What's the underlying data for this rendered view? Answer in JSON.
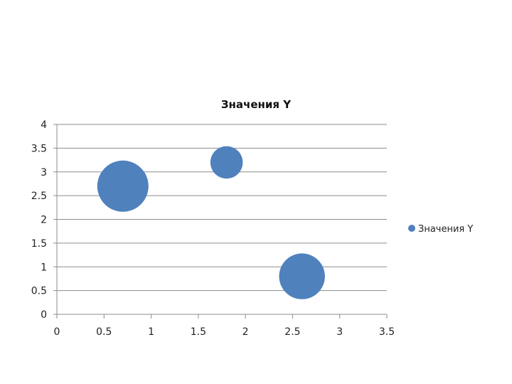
{
  "chart_data": {
    "type": "bubble",
    "title": "Значения Y",
    "xlabel": "",
    "ylabel": "",
    "xlim": [
      0,
      3.5
    ],
    "ylim": [
      0,
      4
    ],
    "x_ticks": [
      "0",
      "0.5",
      "1",
      "1.5",
      "2",
      "2.5",
      "3",
      "3.5"
    ],
    "y_ticks": [
      "0",
      "0.5",
      "1",
      "1.5",
      "2",
      "2.5",
      "3",
      "3.5",
      "4"
    ],
    "grid": true,
    "legend_position": "right",
    "series": [
      {
        "name": "Значения Y",
        "color": "#4f81bd",
        "points": [
          {
            "x": 0.7,
            "y": 2.7,
            "size": 10
          },
          {
            "x": 1.8,
            "y": 3.2,
            "size": 4
          },
          {
            "x": 2.6,
            "y": 0.8,
            "size": 8
          }
        ]
      }
    ]
  }
}
